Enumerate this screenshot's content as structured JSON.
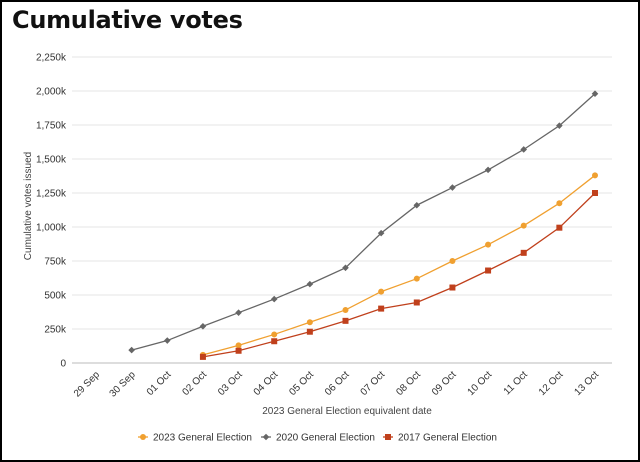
{
  "page": {
    "title": "Cumulative votes"
  },
  "chart_data": {
    "type": "line",
    "title": "Cumulative votes",
    "xlabel": "2023 General Election equivalent date",
    "ylabel": "Cumulative votes issued",
    "ylim": [
      0,
      2250000
    ],
    "ytick_values": [
      0,
      250000,
      500000,
      750000,
      1000000,
      1250000,
      1500000,
      1750000,
      2000000,
      2250000
    ],
    "ytick_labels": [
      "0",
      "250k",
      "500k",
      "750k",
      "1,000k",
      "1,250k",
      "1,500k",
      "1,750k",
      "2,000k",
      "2,250k"
    ],
    "categories": [
      "29 Sep",
      "30 Sep",
      "01 Oct",
      "02 Oct",
      "03 Oct",
      "04 Oct",
      "05 Oct",
      "06 Oct",
      "07 Oct",
      "08 Oct",
      "09 Oct",
      "10 Oct",
      "11 Oct",
      "12 Oct",
      "13 Oct"
    ],
    "grid": true,
    "legend_position": "bottom",
    "series": [
      {
        "name": "2023 General Election",
        "color": "#f0a030",
        "marker": "circle",
        "values": [
          null,
          null,
          null,
          60000,
          130000,
          210000,
          300000,
          390000,
          525000,
          620000,
          750000,
          870000,
          1010000,
          1175000,
          1380000
        ]
      },
      {
        "name": "2020 General Election",
        "color": "#666666",
        "marker": "diamond",
        "values": [
          null,
          95000,
          165000,
          270000,
          370000,
          470000,
          580000,
          700000,
          955000,
          1160000,
          1290000,
          1420000,
          1570000,
          1745000,
          1980000
        ]
      },
      {
        "name": "2017 General Election",
        "color": "#c0401c",
        "marker": "square",
        "values": [
          null,
          null,
          null,
          45000,
          90000,
          160000,
          230000,
          310000,
          400000,
          445000,
          555000,
          680000,
          810000,
          995000,
          1250000
        ]
      }
    ]
  }
}
